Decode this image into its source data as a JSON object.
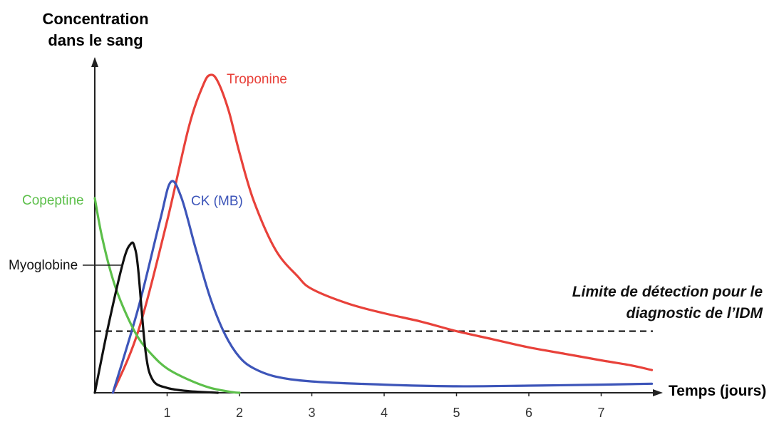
{
  "axis_titles": {
    "y_line1": "Concentration",
    "y_line2": "dans le sang",
    "x": "Temps (jours)"
  },
  "annotation": {
    "line1": "Limite de détection pour le",
    "line2": "diagnostic de l’IDM"
  },
  "chart_data": {
    "type": "line",
    "title": "",
    "xlabel": "Temps (jours)",
    "ylabel": "Concentration dans le sang",
    "xlim": [
      -0.05,
      7.7
    ],
    "ylim": [
      0,
      1
    ],
    "grid": false,
    "legend": "none (series labelled directly on the curves)",
    "x_ticks": [
      1,
      2,
      3,
      4,
      5,
      6,
      7
    ],
    "x_tick_labels": [
      "1",
      "2",
      "3",
      "4",
      "5",
      "6",
      "7"
    ],
    "detection_limit": 0.19,
    "series": [
      {
        "name": "Troponine",
        "color": "#e8413a",
        "x": [
          0.25,
          0.6,
          1.0,
          1.3,
          1.5,
          1.6,
          1.7,
          1.85,
          2.0,
          2.2,
          2.5,
          2.8,
          3.0,
          3.5,
          4.0,
          4.5,
          5.0,
          5.5,
          6.0,
          6.5,
          7.0,
          7.4,
          7.7
        ],
        "y": [
          0.0,
          0.19,
          0.53,
          0.82,
          0.95,
          0.98,
          0.96,
          0.87,
          0.74,
          0.59,
          0.44,
          0.36,
          0.32,
          0.275,
          0.245,
          0.22,
          0.19,
          0.165,
          0.14,
          0.12,
          0.1,
          0.085,
          0.07
        ]
      },
      {
        "name": "CK (MB)",
        "color": "#3d55b9",
        "x": [
          0.25,
          0.6,
          0.9,
          1.05,
          1.2,
          1.4,
          1.6,
          1.8,
          2.0,
          2.2,
          2.5,
          3.0,
          4.0,
          5.0,
          6.0,
          7.0,
          7.7
        ],
        "y": [
          0.0,
          0.26,
          0.53,
          0.65,
          0.6,
          0.44,
          0.29,
          0.18,
          0.11,
          0.075,
          0.05,
          0.035,
          0.025,
          0.02,
          0.022,
          0.025,
          0.028
        ]
      },
      {
        "name": "Copeptine",
        "color": "#5cbf4a",
        "x": [
          0.0,
          0.1,
          0.25,
          0.4,
          0.6,
          0.8,
          1.0,
          1.3,
          1.6,
          1.9,
          2.0
        ],
        "y": [
          0.6,
          0.48,
          0.35,
          0.26,
          0.17,
          0.115,
          0.075,
          0.04,
          0.015,
          0.002,
          0.0
        ]
      },
      {
        "name": "Myoglobine",
        "color": "#111111",
        "x": [
          0.0,
          0.2,
          0.4,
          0.5,
          0.55,
          0.6,
          0.7,
          0.8,
          1.0,
          1.3,
          1.7
        ],
        "y": [
          0.0,
          0.22,
          0.41,
          0.46,
          0.45,
          0.38,
          0.13,
          0.04,
          0.015,
          0.005,
          0.0
        ]
      }
    ]
  }
}
